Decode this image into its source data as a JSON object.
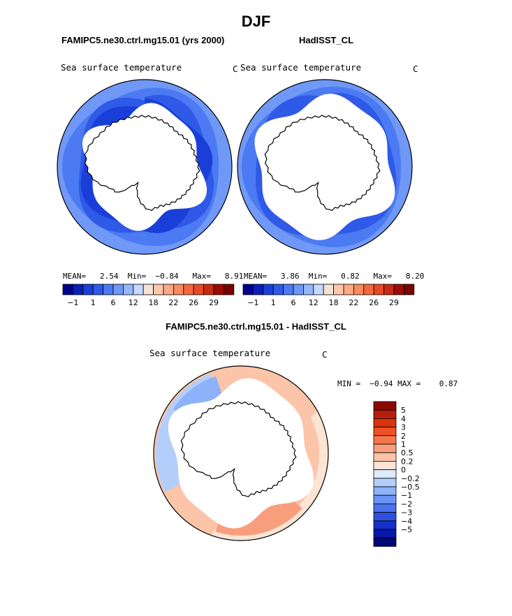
{
  "figure": {
    "season": "DJF",
    "panel_a_title": "FAMIPC5.ne30.ctrl.mg15.01 (yrs 2000)",
    "panel_b_title": "HadISST_CL",
    "diff_title": "FAMIPC5.ne30.ctrl.mg15.01 - HadISST_CL"
  },
  "chart_data": [
    {
      "type": "heatmap",
      "projection": "south-polar-stereographic",
      "title": "FAMIPC5.ne30.ctrl.mg15.01 (yrs 2000)",
      "variable": "Sea surface temperature",
      "units": "C",
      "stats": {
        "mean_label": "MEAN=",
        "mean": "2.54",
        "min_label": "Min=",
        "min": "−0.84",
        "max_label": "Max=",
        "max": "8.91"
      },
      "colorbar": {
        "levels": [
          -1,
          1,
          6,
          12,
          18,
          22,
          26,
          29
        ],
        "tick_labels": [
          "−1",
          "1",
          "6",
          "12",
          "18",
          "22",
          "26",
          "29"
        ],
        "colors": [
          "#00008f",
          "#0a1fb8",
          "#1a3fd9",
          "#2f5ae8",
          "#4c7af2",
          "#6f98f7",
          "#97b7fb",
          "#c5d8fd",
          "#f4e4d8",
          "#fcc7ab",
          "#fca985",
          "#fa8a5f",
          "#f5683c",
          "#e84a24",
          "#c92a12",
          "#9a0d05",
          "#7a0403"
        ]
      }
    },
    {
      "type": "heatmap",
      "projection": "south-polar-stereographic",
      "title": "HadISST_CL",
      "variable": "Sea surface temperature",
      "units": "C",
      "stats": {
        "mean_label": "MEAN=",
        "mean": "3.86",
        "min_label": "Min=",
        "min": "0.82",
        "max_label": "Max=",
        "max": "8.20"
      },
      "colorbar": {
        "levels": [
          -1,
          1,
          6,
          12,
          18,
          22,
          26,
          29
        ],
        "tick_labels": [
          "−1",
          "1",
          "6",
          "12",
          "18",
          "22",
          "26",
          "29"
        ],
        "colors": [
          "#00008f",
          "#0a1fb8",
          "#1a3fd9",
          "#2f5ae8",
          "#4c7af2",
          "#6f98f7",
          "#97b7fb",
          "#c5d8fd",
          "#f4e4d8",
          "#fcc7ab",
          "#fca985",
          "#fa8a5f",
          "#f5683c",
          "#e84a24",
          "#c92a12",
          "#9a0d05",
          "#7a0403"
        ]
      }
    },
    {
      "type": "heatmap",
      "projection": "south-polar-stereographic",
      "title": "FAMIPC5.ne30.ctrl.mg15.01 - HadISST_CL",
      "variable": "Sea surface temperature",
      "units": "C",
      "stats": {
        "min_label": "MIN =",
        "min": "−0.94",
        "max_label": "MAX =",
        "max": "0.87"
      },
      "colorbar": {
        "orientation": "vertical",
        "tick_labels": [
          "5",
          "4",
          "3",
          "2",
          "1",
          "0.5",
          "0.2",
          "0",
          "−0.2",
          "−0.5",
          "−1",
          "−2",
          "−3",
          "−4",
          "−5"
        ],
        "colors": [
          "#8c0a04",
          "#b81c0c",
          "#d9340f",
          "#ee5226",
          "#f5764a",
          "#f99e7c",
          "#fcc4a8",
          "#fde4d4",
          "#deebfa",
          "#b4cefb",
          "#8eb2f9",
          "#6c94f5",
          "#4a72ee",
          "#2d50e0",
          "#1430c8",
          "#0818a8",
          "#00087a"
        ]
      }
    }
  ]
}
